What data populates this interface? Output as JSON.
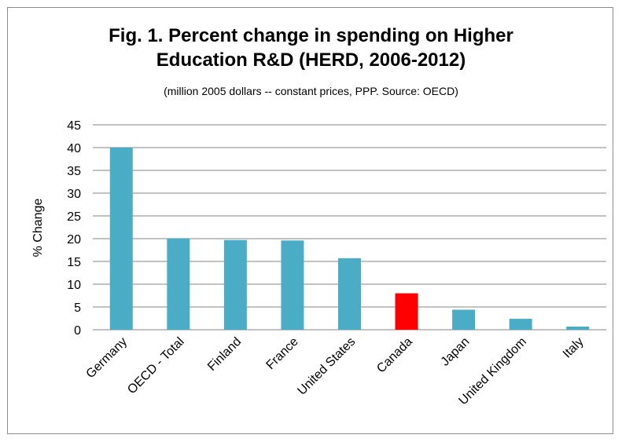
{
  "chart_data": {
    "type": "bar",
    "title_line1": "Fig. 1. Percent change in spending on Higher",
    "title_line2": "Education R&D (HERD, 2006-2012)",
    "subtitle": "(million 2005 dollars -- constant prices, PPP. Source: OECD)",
    "xlabel": "",
    "ylabel": "% Change",
    "ylim": [
      0,
      45
    ],
    "yticks": [
      0,
      5,
      10,
      15,
      20,
      25,
      30,
      35,
      40,
      45
    ],
    "grid": true,
    "categories": [
      "Germany",
      "OECD - Total",
      "Finland",
      "France",
      "United States",
      "Canada",
      "Japan",
      "United Kingdom",
      "Italy"
    ],
    "values": [
      40.0,
      20.1,
      19.7,
      19.6,
      15.7,
      8.0,
      4.4,
      2.4,
      0.7
    ],
    "colors": [
      "#4bacc6",
      "#4bacc6",
      "#4bacc6",
      "#4bacc6",
      "#4bacc6",
      "#ff0000",
      "#4bacc6",
      "#4bacc6",
      "#4bacc6"
    ],
    "gridline_color": "#868686"
  }
}
